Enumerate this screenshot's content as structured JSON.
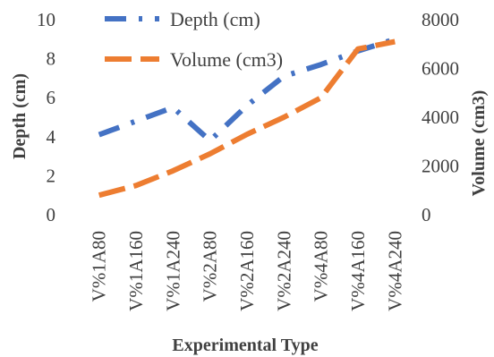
{
  "chart_data": {
    "type": "line",
    "categories": [
      "V%1A80",
      "V%1A160",
      "V%1A240",
      "V%2A80",
      "V%2A160",
      "V%2A240",
      "V%4A80",
      "V%4A160",
      "V%4A240"
    ],
    "xlabel": "Experimental Type",
    "ylabel": "Depth (cm)",
    "y2label": "Volume (cm3)",
    "ylim": [
      0,
      10
    ],
    "y2lim": [
      0,
      8000
    ],
    "yticks": [
      "0",
      "2",
      "4",
      "6",
      "8",
      "10"
    ],
    "y2ticks": [
      "0",
      "2000",
      "4000",
      "6000",
      "8000"
    ],
    "legend_position": "top-left",
    "grid": false,
    "series": [
      {
        "name": "Depth (cm)",
        "axis": "left",
        "color": "#4472C4",
        "style": "dash-dot",
        "values": [
          4.1,
          4.8,
          5.5,
          3.8,
          5.6,
          7.1,
          7.7,
          8.4,
          9.0
        ]
      },
      {
        "name": "Volume (cm3)",
        "axis": "right",
        "color": "#ED7D31",
        "style": "dash",
        "values": [
          800,
          1200,
          1800,
          2500,
          3300,
          4000,
          4800,
          6800,
          7100
        ]
      }
    ]
  }
}
